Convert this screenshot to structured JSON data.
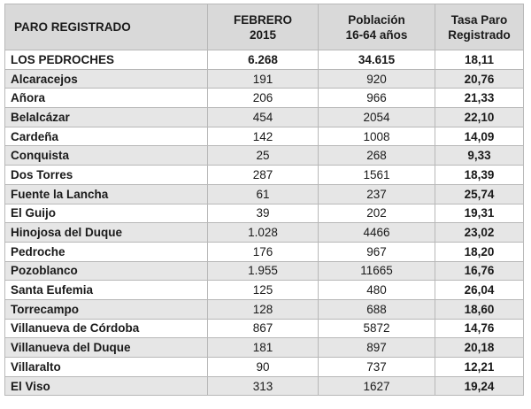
{
  "table": {
    "headers": [
      [
        "PARO REGISTRADO"
      ],
      [
        "FEBRERO",
        "2015"
      ],
      [
        "Población",
        "16-64 años"
      ],
      [
        "Tasa Paro",
        "Registrado"
      ]
    ],
    "rows": [
      {
        "name": "LOS PEDROCHES",
        "paro": "6.268",
        "poblacion": "34.615",
        "tasa": "18,11"
      },
      {
        "name": "Alcaracejos",
        "paro": "191",
        "poblacion": "920",
        "tasa": "20,76"
      },
      {
        "name": "Añora",
        "paro": "206",
        "poblacion": "966",
        "tasa": "21,33"
      },
      {
        "name": "Belalcázar",
        "paro": "454",
        "poblacion": "2054",
        "tasa": "22,10"
      },
      {
        "name": "Cardeña",
        "paro": "142",
        "poblacion": "1008",
        "tasa": "14,09"
      },
      {
        "name": "Conquista",
        "paro": "25",
        "poblacion": "268",
        "tasa": "9,33"
      },
      {
        "name": "Dos Torres",
        "paro": "287",
        "poblacion": "1561",
        "tasa": "18,39"
      },
      {
        "name": "Fuente la Lancha",
        "paro": "61",
        "poblacion": "237",
        "tasa": "25,74"
      },
      {
        "name": "El Guijo",
        "paro": "39",
        "poblacion": "202",
        "tasa": "19,31"
      },
      {
        "name": "Hinojosa del Duque",
        "paro": "1.028",
        "poblacion": "4466",
        "tasa": "23,02"
      },
      {
        "name": "Pedroche",
        "paro": "176",
        "poblacion": "967",
        "tasa": "18,20"
      },
      {
        "name": "Pozoblanco",
        "paro": "1.955",
        "poblacion": "11665",
        "tasa": "16,76"
      },
      {
        "name": "Santa Eufemia",
        "paro": "125",
        "poblacion": "480",
        "tasa": "26,04"
      },
      {
        "name": "Torrecampo",
        "paro": "128",
        "poblacion": "688",
        "tasa": "18,60"
      },
      {
        "name": "Villanueva de Córdoba",
        "paro": "867",
        "poblacion": "5872",
        "tasa": "14,76"
      },
      {
        "name": "Villanueva del Duque",
        "paro": "181",
        "poblacion": "897",
        "tasa": "20,18"
      },
      {
        "name": "Villaralto",
        "paro": "90",
        "poblacion": "737",
        "tasa": "12,21"
      },
      {
        "name": "El Viso",
        "paro": "313",
        "poblacion": "1627",
        "tasa": "19,24"
      }
    ]
  }
}
